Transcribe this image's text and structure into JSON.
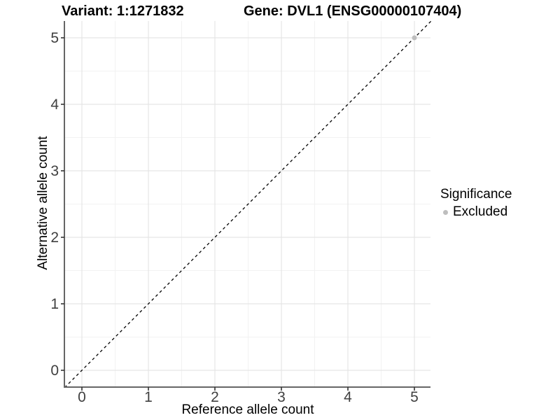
{
  "figure": {
    "title_left": "Variant: 1:1271832",
    "title_right": "Gene: DVL1 (ENSG00000107404)"
  },
  "chart_data": {
    "type": "scatter",
    "title_left": "Variant: 1:1271832",
    "title_right": "Gene: DVL1 (ENSG00000107404)",
    "xlabel": "Reference allele count",
    "ylabel": "Alternative allele count",
    "xlim": [
      -0.26,
      5.26
    ],
    "ylim": [
      -0.26,
      5.26
    ],
    "x_ticks": [
      0,
      1,
      2,
      3,
      4,
      5
    ],
    "y_ticks": [
      0,
      1,
      2,
      3,
      4,
      5
    ],
    "minor_ticks": [
      0.5,
      1.5,
      2.5,
      3.5,
      4.5
    ],
    "grid": "major+minor",
    "identity_line": {
      "slope": 1,
      "intercept": 0,
      "style": "dashed",
      "color": "#000000"
    },
    "series": [
      {
        "name": "Excluded",
        "color": "#bebebe",
        "points": [
          {
            "x": 5,
            "y": 5
          }
        ]
      }
    ],
    "legend": {
      "title": "Significance",
      "position": "right",
      "items": [
        {
          "label": "Excluded",
          "color": "#bebebe"
        }
      ]
    },
    "colors": {
      "major_grid": "#e5e5e5",
      "minor_grid": "#f2f2f2",
      "axis_line": "#666666",
      "tick_mark": "#333333",
      "tick_label": "#404040",
      "background": "#ffffff"
    }
  }
}
